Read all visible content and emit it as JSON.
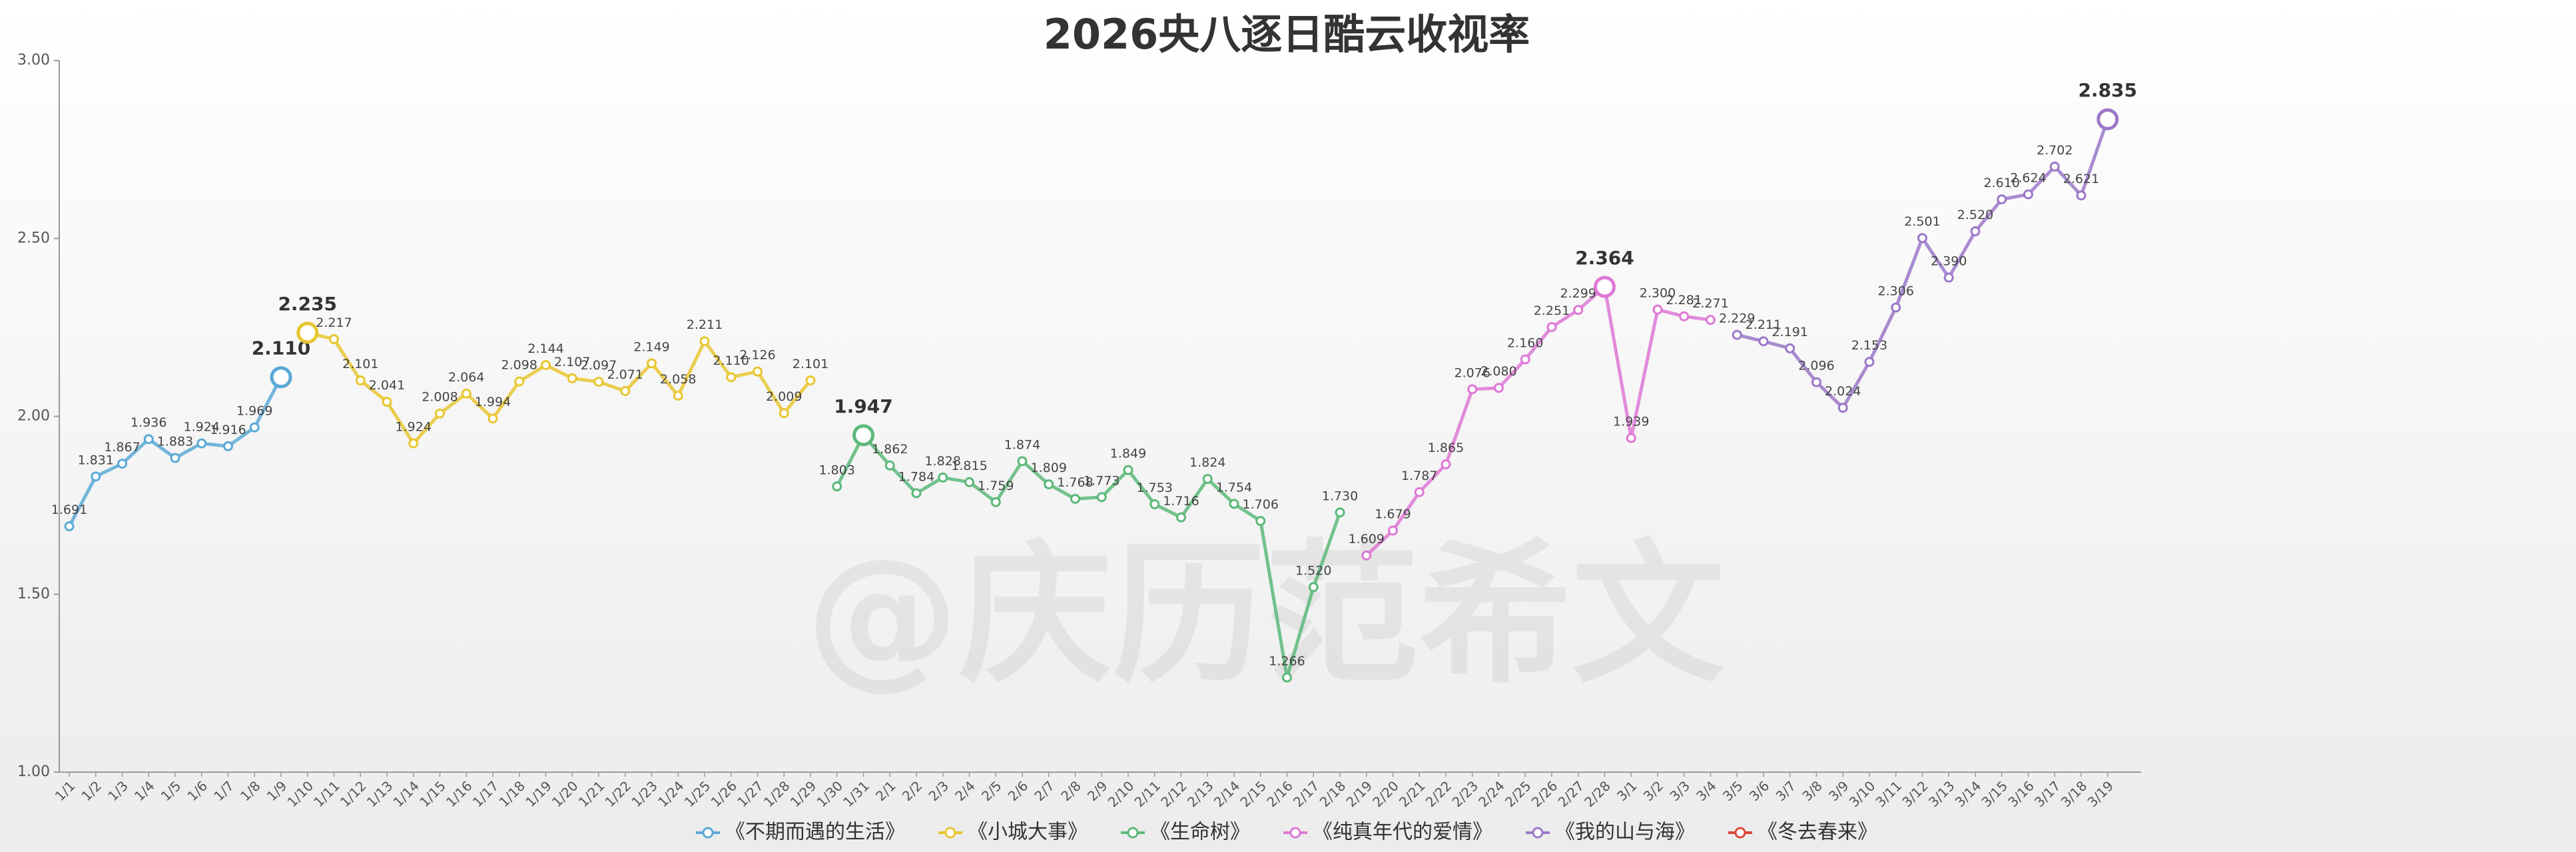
{
  "chart_data": {
    "type": "line",
    "title": "2026央八逐日酷云收视率",
    "watermark": "@庆历范希文",
    "categories": [
      "1/1",
      "1/2",
      "1/3",
      "1/4",
      "1/5",
      "1/6",
      "1/7",
      "1/8",
      "1/9",
      "1/10",
      "1/11",
      "1/12",
      "1/13",
      "1/14",
      "1/15",
      "1/16",
      "1/17",
      "1/18",
      "1/19",
      "1/20",
      "1/21",
      "1/22",
      "1/23",
      "1/24",
      "1/25",
      "1/26",
      "1/27",
      "1/28",
      "1/29",
      "1/30",
      "1/31",
      "2/1",
      "2/2",
      "2/3",
      "2/4",
      "2/5",
      "2/6",
      "2/7",
      "2/8",
      "2/9",
      "2/10",
      "2/11",
      "2/12",
      "2/13",
      "2/14",
      "2/15",
      "2/16",
      "2/17",
      "2/18",
      "2/19",
      "2/20",
      "2/21",
      "2/22",
      "2/23",
      "2/24",
      "2/25",
      "2/26",
      "2/27",
      "2/28",
      "3/1",
      "3/2",
      "3/3",
      "3/4",
      "3/5",
      "3/6",
      "3/7",
      "3/8",
      "3/9",
      "3/10",
      "3/11",
      "3/12",
      "3/13",
      "3/14",
      "3/15",
      "3/16",
      "3/17",
      "3/18",
      "3/19"
    ],
    "ylim": [
      1,
      3
    ],
    "yticks": [
      {
        "value": 1,
        "label": "1.00"
      },
      {
        "value": 1.5,
        "label": "1.50"
      },
      {
        "value": 2,
        "label": "2.00"
      },
      {
        "value": 2.5,
        "label": "2.50"
      },
      {
        "value": 3,
        "label": "3.00"
      }
    ],
    "legend": "bottom",
    "series": [
      {
        "name": "《不期而遇的生活》",
        "color": "#5aa9d6",
        "values": [
          1.691,
          1.831,
          1.867,
          1.936,
          1.883,
          1.924,
          1.916,
          1.969,
          2.11,
          null,
          null,
          null,
          null,
          null,
          null,
          null,
          null,
          null,
          null,
          null,
          null,
          null,
          null,
          null,
          null,
          null,
          null,
          null,
          null,
          null,
          null,
          null,
          null,
          null,
          null,
          null,
          null,
          null,
          null,
          null,
          null,
          null,
          null,
          null,
          null,
          null,
          null,
          null,
          null,
          null,
          null,
          null,
          null,
          null,
          null,
          null,
          null,
          null,
          null,
          null,
          null,
          null,
          null,
          null,
          null,
          null,
          null,
          null,
          null,
          null,
          null,
          null,
          null,
          null,
          null,
          null,
          null,
          null
        ],
        "value_labels": [
          "1.691",
          "1.831",
          "1.867",
          "1.936",
          "1.883",
          "1.924",
          "1.916",
          "1.969",
          "2.110",
          null,
          null,
          null,
          null,
          null,
          null,
          null,
          null,
          null,
          null,
          null,
          null,
          null,
          null,
          null,
          null,
          null,
          null,
          null,
          null,
          null,
          null,
          null,
          null,
          null,
          null,
          null,
          null,
          null,
          null,
          null,
          null,
          null,
          null,
          null,
          null,
          null,
          null,
          null,
          null,
          null,
          null,
          null,
          null,
          null,
          null,
          null,
          null,
          null,
          null,
          null,
          null,
          null,
          null,
          null,
          null,
          null,
          null,
          null,
          null,
          null,
          null,
          null,
          null,
          null,
          null,
          null,
          null,
          null
        ]
      },
      {
        "name": "《小城大事》",
        "color": "#e8c630",
        "values": [
          null,
          null,
          null,
          null,
          null,
          null,
          null,
          null,
          null,
          2.235,
          2.217,
          2.101,
          2.041,
          1.924,
          2.008,
          2.064,
          1.994,
          2.098,
          2.144,
          2.107,
          2.097,
          2.071,
          2.149,
          2.058,
          2.211,
          2.11,
          2.126,
          2.009,
          2.101,
          null,
          null,
          null,
          null,
          null,
          null,
          null,
          null,
          null,
          null,
          null,
          null,
          null,
          null,
          null,
          null,
          null,
          null,
          null,
          null,
          null,
          null,
          null,
          null,
          null,
          null,
          null,
          null,
          null,
          null,
          null,
          null,
          null,
          null,
          null,
          null,
          null,
          null,
          null,
          null,
          null,
          null,
          null,
          null,
          null,
          null,
          null,
          null,
          null
        ],
        "value_labels": [
          null,
          null,
          null,
          null,
          null,
          null,
          null,
          null,
          null,
          "2.235",
          "2.217",
          "2.101",
          "2.041",
          "1.924",
          "2.008",
          "2.064",
          "1.994",
          "2.098",
          "2.144",
          "2.107",
          "2.097",
          "2.071",
          "2.149",
          "2.058",
          "2.211",
          "2.110",
          "2.126",
          "2.009",
          "2.101",
          null,
          null,
          null,
          null,
          null,
          null,
          null,
          null,
          null,
          null,
          null,
          null,
          null,
          null,
          null,
          null,
          null,
          null,
          null,
          null,
          null,
          null,
          null,
          null,
          null,
          null,
          null,
          null,
          null,
          null,
          null,
          null,
          null,
          null,
          null,
          null,
          null,
          null,
          null,
          null,
          null,
          null,
          null,
          null,
          null,
          null,
          null,
          null,
          null
        ]
      },
      {
        "name": "《生命树》",
        "color": "#5cb87a",
        "values": [
          null,
          null,
          null,
          null,
          null,
          null,
          null,
          null,
          null,
          null,
          null,
          null,
          null,
          null,
          null,
          null,
          null,
          null,
          null,
          null,
          null,
          null,
          null,
          null,
          null,
          null,
          null,
          null,
          null,
          1.803,
          1.947,
          1.862,
          1.784,
          1.828,
          1.815,
          1.759,
          1.874,
          1.809,
          1.768,
          1.773,
          1.849,
          1.753,
          1.716,
          1.824,
          1.754,
          1.706,
          1.266,
          1.52,
          1.73,
          null,
          null,
          null,
          null,
          null,
          null,
          null,
          null,
          null,
          null,
          null,
          null,
          null,
          null,
          null,
          null,
          null,
          null,
          null,
          null,
          null,
          null,
          null,
          null,
          null,
          null,
          null,
          null,
          null
        ],
        "value_labels": [
          null,
          null,
          null,
          null,
          null,
          null,
          null,
          null,
          null,
          null,
          null,
          null,
          null,
          null,
          null,
          null,
          null,
          null,
          null,
          null,
          null,
          null,
          null,
          null,
          null,
          null,
          null,
          null,
          null,
          "1.803",
          "1.947",
          "1.862",
          "1.784",
          "1.828",
          "1.815",
          "1.759",
          "1.874",
          "1.809",
          "1.768",
          "1.773",
          "1.849",
          "1.753",
          "1.716",
          "1.824",
          "1.754",
          "1.706",
          "1.266",
          "1.520",
          "1.730",
          null,
          null,
          null,
          null,
          null,
          null,
          null,
          null,
          null,
          null,
          null,
          null,
          null,
          null,
          null,
          null,
          null,
          null,
          null,
          null,
          null,
          null,
          null,
          null,
          null,
          null,
          null,
          null,
          null
        ]
      },
      {
        "name": "《纯真年代的爱情》",
        "color": "#de78d6",
        "values": [
          null,
          null,
          null,
          null,
          null,
          null,
          null,
          null,
          null,
          null,
          null,
          null,
          null,
          null,
          null,
          null,
          null,
          null,
          null,
          null,
          null,
          null,
          null,
          null,
          null,
          null,
          null,
          null,
          null,
          null,
          null,
          null,
          null,
          null,
          null,
          null,
          null,
          null,
          null,
          null,
          null,
          null,
          null,
          null,
          null,
          null,
          null,
          null,
          null,
          1.609,
          1.679,
          1.787,
          1.865,
          2.076,
          2.08,
          2.16,
          2.251,
          2.299,
          2.364,
          1.939,
          2.3,
          2.281,
          2.271,
          null,
          null,
          null,
          null,
          null,
          null,
          null,
          null,
          null,
          null,
          null,
          null,
          null,
          null,
          null
        ],
        "value_labels": [
          null,
          null,
          null,
          null,
          null,
          null,
          null,
          null,
          null,
          null,
          null,
          null,
          null,
          null,
          null,
          null,
          null,
          null,
          null,
          null,
          null,
          null,
          null,
          null,
          null,
          null,
          null,
          null,
          null,
          null,
          null,
          null,
          null,
          null,
          null,
          null,
          null,
          null,
          null,
          null,
          null,
          null,
          null,
          null,
          null,
          null,
          null,
          null,
          null,
          "1.609",
          "1.679",
          "1.787",
          "1.865",
          "2.076",
          "2.080",
          "2.160",
          "2.251",
          "2.299",
          "2.364",
          "1.939",
          "2.300",
          "2.281",
          "2.271",
          null,
          null,
          null,
          null,
          null,
          null,
          null,
          null,
          null,
          null,
          null,
          null,
          null,
          null,
          null
        ]
      },
      {
        "name": "《我的山与海》",
        "color": "#9b78c9",
        "values": [
          null,
          null,
          null,
          null,
          null,
          null,
          null,
          null,
          null,
          null,
          null,
          null,
          null,
          null,
          null,
          null,
          null,
          null,
          null,
          null,
          null,
          null,
          null,
          null,
          null,
          null,
          null,
          null,
          null,
          null,
          null,
          null,
          null,
          null,
          null,
          null,
          null,
          null,
          null,
          null,
          null,
          null,
          null,
          null,
          null,
          null,
          null,
          null,
          null,
          null,
          null,
          null,
          null,
          null,
          null,
          null,
          null,
          null,
          null,
          null,
          null,
          null,
          null,
          2.229,
          2.211,
          2.191,
          2.096,
          2.024,
          2.153,
          2.306,
          2.501,
          2.39,
          2.52,
          2.61,
          2.624,
          2.702,
          2.621,
          2.835
        ],
        "value_labels": [
          null,
          null,
          null,
          null,
          null,
          null,
          null,
          null,
          null,
          null,
          null,
          null,
          null,
          null,
          null,
          null,
          null,
          null,
          null,
          null,
          null,
          null,
          null,
          null,
          null,
          null,
          null,
          null,
          null,
          null,
          null,
          null,
          null,
          null,
          null,
          null,
          null,
          null,
          null,
          null,
          null,
          null,
          null,
          null,
          null,
          null,
          null,
          null,
          null,
          null,
          null,
          null,
          null,
          null,
          null,
          null,
          null,
          null,
          null,
          null,
          null,
          null,
          null,
          "2.229",
          "2.211",
          "2.191",
          "2.096",
          "2.024",
          "2.153",
          "2.306",
          "2.501",
          "2.390",
          "2.520",
          "2.610",
          "2.624",
          "2.702",
          "2.621",
          "2.835"
        ]
      },
      {
        "name": "《冬去春来》",
        "color": "#d9463b",
        "values": [
          null,
          null,
          null,
          null,
          null,
          null,
          null,
          null,
          null,
          null,
          null,
          null,
          null,
          null,
          null,
          null,
          null,
          null,
          null,
          null,
          null,
          null,
          null,
          null,
          null,
          null,
          null,
          null,
          null,
          null,
          null,
          null,
          null,
          null,
          null,
          null,
          null,
          null,
          null,
          null,
          null,
          null,
          null,
          null,
          null,
          null,
          null,
          null,
          null,
          null,
          null,
          null,
          null,
          null,
          null,
          null,
          null,
          null,
          null,
          null,
          null,
          null,
          null,
          null,
          null,
          null,
          null,
          null,
          null,
          null,
          null,
          null,
          null,
          null,
          null,
          null,
          null,
          null
        ]
      }
    ]
  }
}
